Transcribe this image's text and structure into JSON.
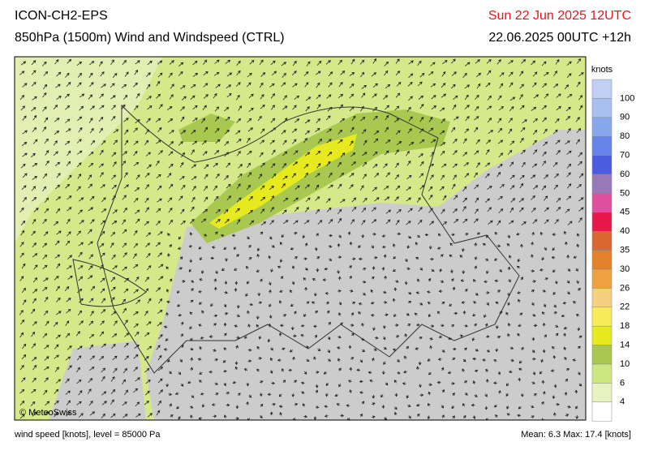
{
  "header": {
    "model": "ICON-CH2-EPS",
    "field": "850hPa (1500m) Wind and Windspeed (CTRL)",
    "valid": "Sun 22 Jun 2025 12UTC",
    "run": "22.06.2025 00UTC +12h"
  },
  "map": {
    "copyright": "© MeteoSwiss"
  },
  "legend": {
    "unit": "knots",
    "levels": [
      100,
      90,
      80,
      70,
      60,
      50,
      45,
      40,
      35,
      30,
      26,
      22,
      18,
      14,
      10,
      6,
      4
    ],
    "colors": [
      "#c0d0f4",
      "#a8c0f0",
      "#88a8ee",
      "#6684ea",
      "#4c5ce0",
      "#9878b8",
      "#e050a0",
      "#e8174a",
      "#d86830",
      "#e4822c",
      "#f0a040",
      "#f4d080",
      "#f8ec58",
      "#e8ea20",
      "#a8c850",
      "#cce680",
      "#e6f2c0",
      "#ffffff"
    ]
  },
  "footer": {
    "left": "wind speed [knots], level = 85000 Pa",
    "right": "Mean:   6.3 Max:  17.4 [knots]"
  }
}
